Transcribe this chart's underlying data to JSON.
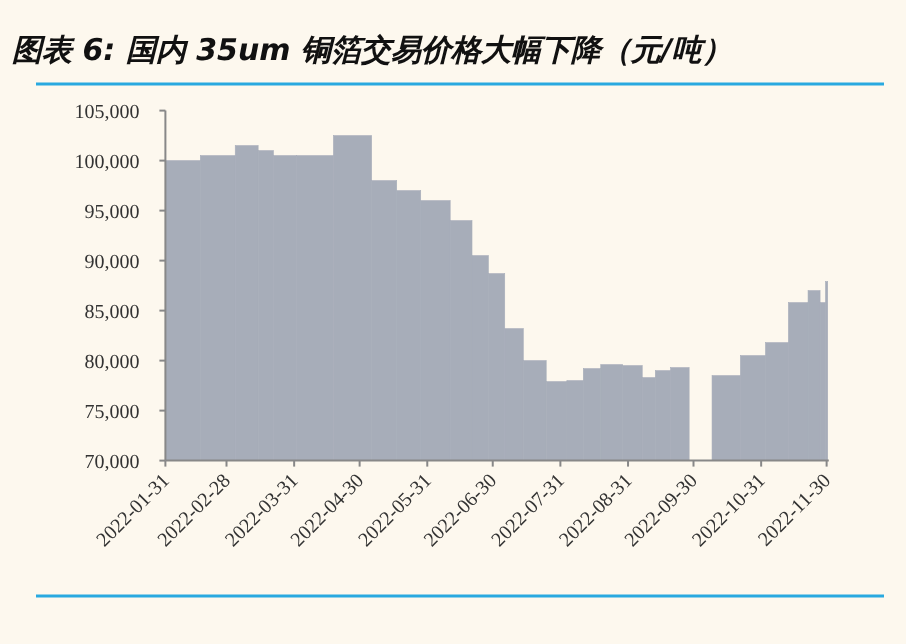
{
  "chart_data": {
    "type": "bar",
    "title": "图表 6:  国内 35um 铜箔交易价格大幅下降（元/吨）",
    "x": [
      "2022-02-07",
      "2022-02-25",
      "2022-03-11",
      "2022-03-18",
      "2022-03-25",
      "2022-04-08",
      "2022-04-28",
      "2022-05-13",
      "2022-05-21",
      "2022-06-04",
      "2022-06-17",
      "2022-06-24",
      "2022-07-02",
      "2022-07-09",
      "2022-07-19",
      "2022-07-30",
      "2022-08-07",
      "2022-08-14",
      "2022-08-23",
      "2022-09-03",
      "2022-09-10",
      "2022-09-15",
      "2022-09-24",
      "2022-10-02",
      "2022-10-15",
      "2022-10-28",
      "2022-11-07",
      "2022-11-18",
      "2022-11-25",
      "2022-11-29",
      "2022-11-30"
    ],
    "values": [
      100000,
      100500,
      101500,
      101000,
      100500,
      100500,
      102500,
      98000,
      97000,
      96000,
      94000,
      90500,
      88700,
      83200,
      80000,
      77900,
      78000,
      79200,
      79600,
      79500,
      78300,
      79000,
      79300,
      null,
      78500,
      80500,
      81800,
      85800,
      87000,
      85800,
      87900
    ],
    "color": "#a7adb9",
    "xlim": [
      "2022-01-31",
      "2022-12-01"
    ],
    "xticks": [
      "2022-01-31",
      "2022-02-28",
      "2022-03-31",
      "2022-04-30",
      "2022-05-31",
      "2022-06-30",
      "2022-07-31",
      "2022-08-31",
      "2022-09-30",
      "2022-10-31",
      "2022-11-30"
    ],
    "ylim": [
      70000,
      105000
    ],
    "yticks": [
      {
        "value": 70000,
        "label": "70,000"
      },
      {
        "value": 75000,
        "label": "75,000"
      },
      {
        "value": 80000,
        "label": "80,000"
      },
      {
        "value": 85000,
        "label": "85,000"
      },
      {
        "value": 90000,
        "label": "90,000"
      },
      {
        "value": 95000,
        "label": "95,000"
      },
      {
        "value": 100000,
        "label": "100,000"
      },
      {
        "value": 105000,
        "label": "105,000"
      }
    ],
    "grid": false
  }
}
